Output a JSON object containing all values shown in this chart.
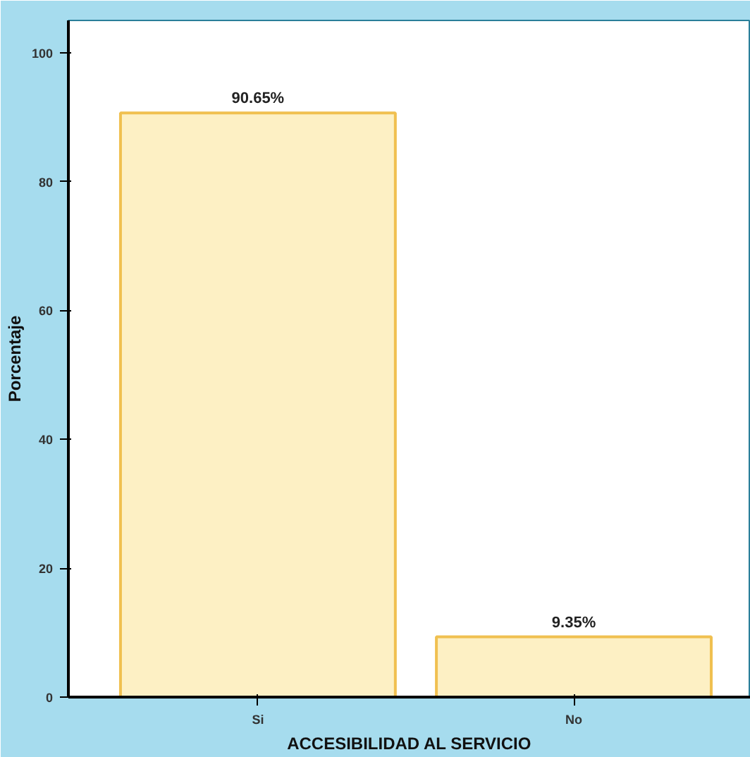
{
  "chart_data": {
    "type": "bar",
    "xlabel": "ACCESIBILIDAD AL SERVICIO",
    "ylabel": "Porcentaje",
    "categories": [
      "Si",
      "No"
    ],
    "values": [
      90.65,
      9.35
    ],
    "value_labels": [
      "90.65%",
      "9.35%"
    ],
    "color": "#fdf0c4",
    "ylim": [
      0,
      105
    ],
    "yticks": [
      0,
      20,
      40,
      60,
      80,
      100
    ],
    "grid": false
  }
}
